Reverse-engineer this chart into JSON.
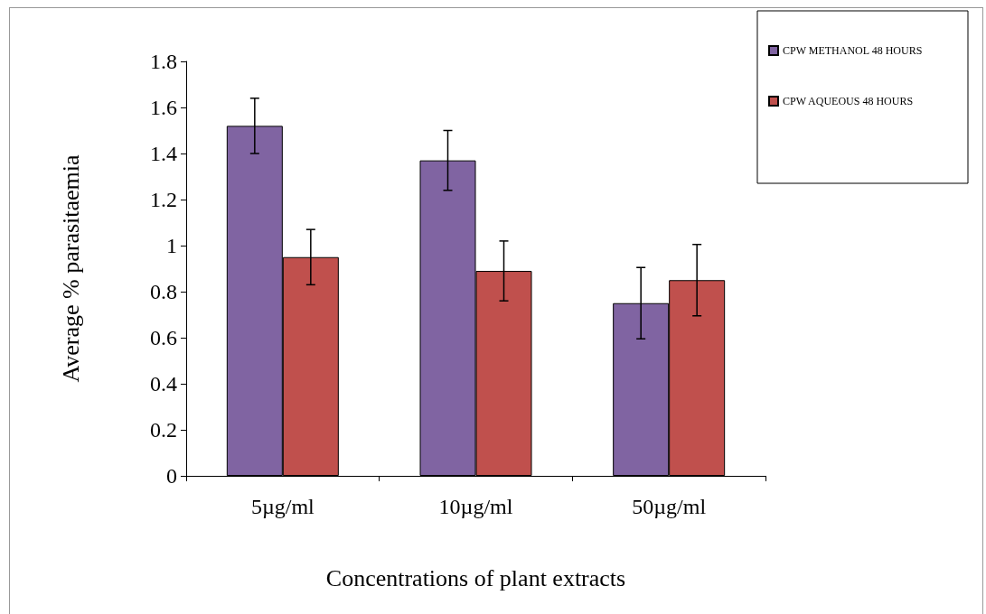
{
  "chart_data": {
    "type": "bar",
    "xlabel": "Concentrations of plant extracts",
    "ylabel": "Average % parasitaemia",
    "categories": [
      "5µg/ml",
      "10µg/ml",
      "50µg/ml"
    ],
    "series": [
      {
        "name": "CPW METHANOL 48 HOURS",
        "color": "#8064a2",
        "values": [
          1.52,
          1.37,
          0.75
        ],
        "errors": [
          0.12,
          0.13,
          0.155
        ]
      },
      {
        "name": "CPW AQUEOUS 48 HOURS",
        "color": "#c0504d",
        "values": [
          0.95,
          0.89,
          0.85
        ],
        "errors": [
          0.12,
          0.13,
          0.155
        ]
      }
    ],
    "ylim": [
      0,
      1.8
    ],
    "yticks": [
      0,
      0.2,
      0.4,
      0.6,
      0.8,
      1,
      1.2,
      1.4,
      1.6,
      1.8
    ],
    "grid": false,
    "legend": "top right"
  }
}
